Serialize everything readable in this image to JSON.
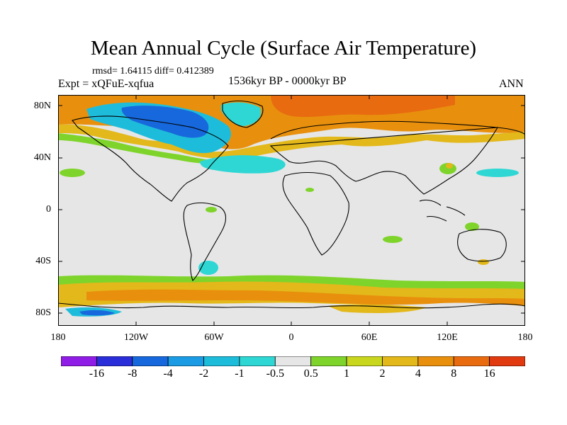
{
  "figure": {
    "title": "Mean Annual Cycle (Surface Air Temperature)",
    "stats_text": "rmsd= 1.64115 diff= 0.412389",
    "experiment_text": "Expt = xQFuE-xqfua",
    "period_text": "1536kyr BP - 0000kyr BP",
    "season": "ANN"
  },
  "axes": {
    "lat_ticks": [
      "80N",
      "40N",
      "0",
      "40S",
      "80S"
    ],
    "lon_ticks": [
      "180",
      "120W",
      "60W",
      "0",
      "60E",
      "120E",
      "180"
    ]
  },
  "colorbar": {
    "labels": [
      "-16",
      "-8",
      "-4",
      "-2",
      "-1",
      "-0.5",
      "0.5",
      "1",
      "2",
      "4",
      "8",
      "16"
    ],
    "colors": [
      "#8f1de6",
      "#2a2ed9",
      "#1768dc",
      "#1a9be3",
      "#1ebcdb",
      "#2ed7d4",
      "#e6e6e6",
      "#7fd42b",
      "#c8d61e",
      "#e3b81a",
      "#e8900d",
      "#e86b10",
      "#e23a10"
    ]
  },
  "palette": {
    "land_outline": "#000000",
    "background": "#e6e6e6"
  }
}
